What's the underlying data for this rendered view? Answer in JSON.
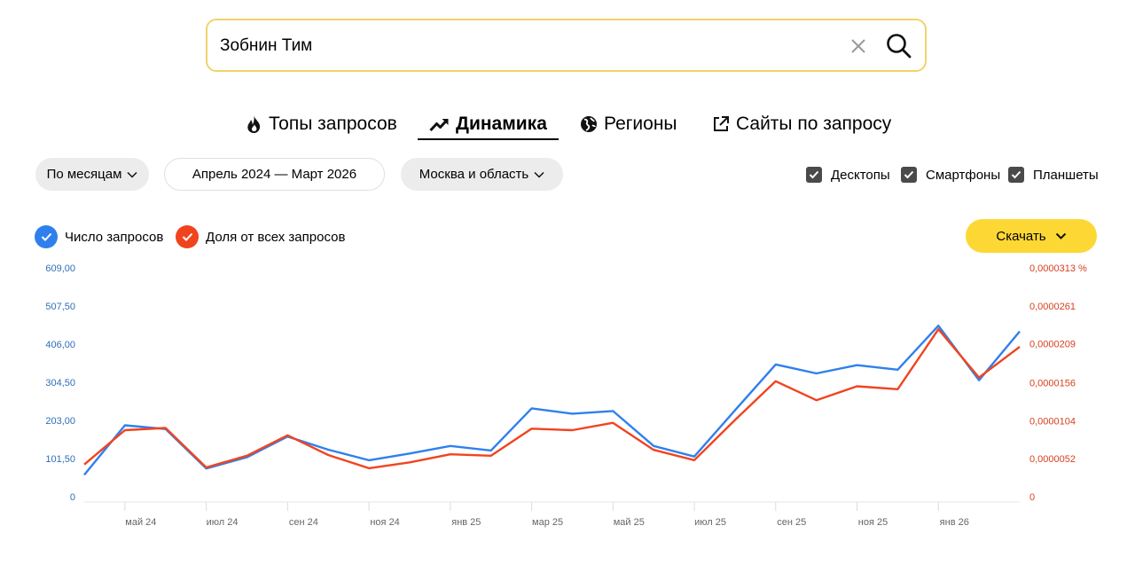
{
  "search": {
    "value": "Зобнин Тим"
  },
  "tabs": [
    {
      "label": "Топы запросов",
      "icon": "fire-icon"
    },
    {
      "label": "Динамика",
      "icon": "trend-up-icon",
      "active": true
    },
    {
      "label": "Регионы",
      "icon": "globe-icon"
    },
    {
      "label": "Сайты по запросу",
      "icon": "external-link-icon"
    }
  ],
  "controls": {
    "period": "По месяцам",
    "range": "Апрель 2024 — Март 2026",
    "region": "Москва и область"
  },
  "devices": [
    {
      "label": "Десктопы",
      "checked": true
    },
    {
      "label": "Смартфоны",
      "checked": true
    },
    {
      "label": "Планшеты",
      "checked": true
    }
  ],
  "legend": {
    "count": {
      "label": "Число запросов",
      "color": "#2f80ed"
    },
    "share": {
      "label": "Доля от всех запросов",
      "color": "#f0441f"
    }
  },
  "download": {
    "label": "Скачать"
  },
  "chart_data": {
    "type": "line",
    "x": [
      "апр 24",
      "май 24",
      "июн 24",
      "июл 24",
      "авг 24",
      "сен 24",
      "окт 24",
      "ноя 24",
      "дек 24",
      "янв 25",
      "фев 25",
      "мар 25",
      "апр 25",
      "май 25",
      "июн 25",
      "июл 25",
      "авг 25",
      "сен 25",
      "окт 25",
      "ноя 25",
      "дек 25",
      "янв 26",
      "фев 26",
      "мар 26"
    ],
    "x_tick_labels": [
      "май 24",
      "июл 24",
      "сен 24",
      "ноя 24",
      "янв 25",
      "мар 25",
      "май 25",
      "июл 25",
      "сен 25",
      "ноя 25",
      "янв 26"
    ],
    "series": [
      {
        "name": "Число запросов",
        "color": "#2f80ed",
        "axis": "left",
        "values": [
          58,
          190,
          180,
          75,
          105,
          160,
          125,
          97,
          115,
          135,
          123,
          235,
          221,
          228,
          135,
          107,
          230,
          352,
          328,
          350,
          338,
          455,
          310,
          440
        ]
      },
      {
        "name": "Доля от всех запросов",
        "color": "#f0441f",
        "axis": "right",
        "values": [
          4.4e-06,
          9.1e-06,
          9.4e-06,
          4e-06,
          5.6e-06,
          8.4e-06,
          5.7e-06,
          3.9e-06,
          4.7e-06,
          5.8e-06,
          5.6e-06,
          9.3e-06,
          9.1e-06,
          1.01e-05,
          6.4e-06,
          5e-06,
          1.05e-05,
          1.58e-05,
          1.32e-05,
          1.51e-05,
          1.47e-05,
          2.29e-05,
          1.63e-05,
          2.05e-05
        ]
      }
    ],
    "y_left": {
      "ticks": [
        0,
        101.5,
        203,
        304.5,
        406,
        507.5,
        609
      ],
      "tick_labels": [
        "0",
        "101,50",
        "203,00",
        "304,50",
        "406,00",
        "507,50",
        "609,00"
      ],
      "ylim": [
        0,
        609
      ]
    },
    "y_right": {
      "ticks": [
        0,
        5.2e-06,
        1.04e-05,
        1.56e-05,
        2.09e-05,
        2.61e-05,
        3.13e-05
      ],
      "tick_labels": [
        "0",
        "0,0000052",
        "0,0000104",
        "0,0000156",
        "0,0000209",
        "0,0000261",
        "0,0000313 %"
      ],
      "ylim": [
        0,
        3.13e-05
      ]
    },
    "grid": false
  }
}
